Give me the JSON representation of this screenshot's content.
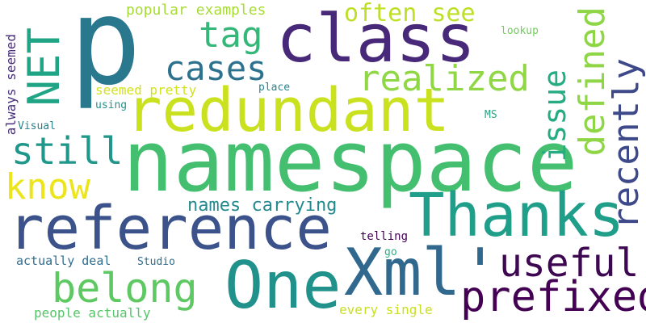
{
  "words": [
    {
      "text": "p",
      "color": "#2a788e"
    },
    {
      "text": "namespace",
      "color": "#44bf70"
    },
    {
      "text": "redundant",
      "color": "#cae11f"
    },
    {
      "text": "class",
      "color": "#482878"
    },
    {
      "text": "reference",
      "color": "#3b528b"
    },
    {
      "text": "Thanks",
      "color": "#1f9e89"
    },
    {
      "text": "Xml'",
      "color": "#31688e"
    },
    {
      "text": "One",
      "color": "#21918c"
    },
    {
      "text": "prefixed",
      "color": "#440154"
    },
    {
      "text": "belong",
      "color": "#5ec962"
    },
    {
      "text": "useful",
      "color": "#3e0751"
    },
    {
      "text": "realized",
      "color": "#8fd744"
    },
    {
      "text": "cases",
      "color": "#2c728e"
    },
    {
      "text": "still",
      "color": "#1f988b"
    },
    {
      "text": "know",
      "color": "#ede51b"
    },
    {
      "text": "tag",
      "color": "#35b779"
    },
    {
      "text": "often see",
      "color": "#bddf26"
    },
    {
      "text": "NET",
      "color": "#20a486"
    },
    {
      "text": "defined",
      "color": "#8ed645"
    },
    {
      "text": "recently",
      "color": "#3e4989"
    },
    {
      "text": "issue",
      "color": "#25ac82"
    },
    {
      "text": "names carrying",
      "color": "#23898e"
    },
    {
      "text": "popular examples",
      "color": "#a8db34"
    },
    {
      "text": "seemed pretty",
      "color": "#d2e21b"
    },
    {
      "text": "always seemed",
      "color": "#472d7b"
    },
    {
      "text": "actually deal",
      "color": "#2f6c8e"
    },
    {
      "text": "people actually",
      "color": "#54c568"
    },
    {
      "text": "every single",
      "color": "#c8e020"
    },
    {
      "text": "telling",
      "color": "#440154"
    },
    {
      "text": "Visual",
      "color": "#26828e"
    },
    {
      "text": "using",
      "color": "#1f948c"
    },
    {
      "text": "place",
      "color": "#25858e"
    },
    {
      "text": "MS",
      "color": "#22a785"
    },
    {
      "text": "lookup",
      "color": "#6ece58"
    },
    {
      "text": "Studio",
      "color": "#2e6e8e"
    },
    {
      "text": "go",
      "color": "#2ab07f"
    }
  ]
}
